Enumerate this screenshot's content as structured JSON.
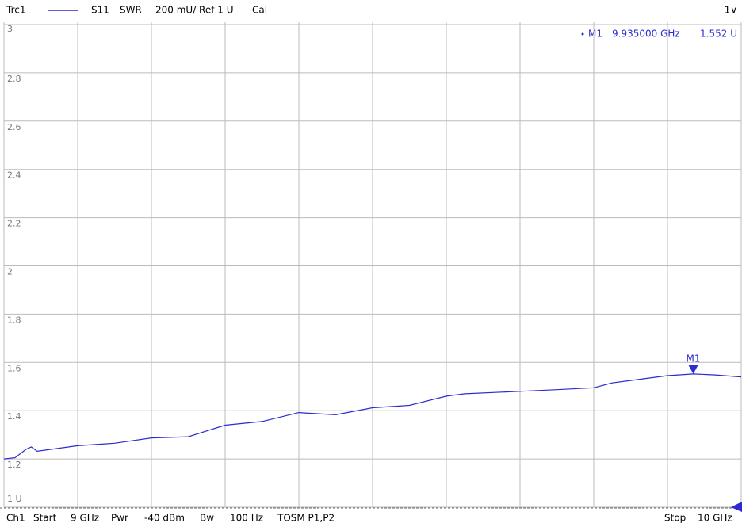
{
  "chart_data": {
    "type": "line",
    "header": {
      "trace": "Trc1",
      "param": "S11",
      "format": "SWR",
      "scale": "200 mU/ Ref 1 U",
      "cal": "Cal",
      "window": "1∨"
    },
    "footer": {
      "channel": "Ch1",
      "start_label": "Start",
      "start": "9 GHz",
      "power_label": "Pwr",
      "power": "-40 dBm",
      "bw_label": "Bw",
      "bw": "100 Hz",
      "calkit": "TOSM P1,P2",
      "stop_label": "Stop",
      "stop": "10 GHz"
    },
    "x": [
      9.0,
      9.015,
      9.03,
      9.037,
      9.045,
      9.1,
      9.15,
      9.2,
      9.25,
      9.3,
      9.35,
      9.4,
      9.45,
      9.5,
      9.55,
      9.6,
      9.625,
      9.7,
      9.75,
      9.8,
      9.825,
      9.85,
      9.9,
      9.935,
      9.965,
      10.0
    ],
    "series": [
      {
        "name": "Trc1",
        "color": "#2b2bd0",
        "values": [
          1.2,
          1.205,
          1.24,
          1.25,
          1.232,
          1.255,
          1.265,
          1.287,
          1.292,
          1.34,
          1.355,
          1.392,
          1.383,
          1.412,
          1.422,
          1.46,
          1.47,
          1.48,
          1.487,
          1.495,
          1.515,
          1.525,
          1.545,
          1.552,
          1.548,
          1.54
        ]
      }
    ],
    "marker": {
      "name": "M1",
      "x": 9.935,
      "x_label": "9.935000 GHz",
      "y": 1.552,
      "y_label": "1.552 U"
    },
    "xlim": [
      9.0,
      10.0
    ],
    "xticks": [
      9.0,
      9.1,
      9.2,
      9.3,
      9.4,
      9.5,
      9.6,
      9.7,
      9.8,
      9.9,
      10.0
    ],
    "ylim": [
      1,
      3
    ],
    "yticks": [
      {
        "value": 1,
        "label": "1 U"
      },
      1.2,
      1.4,
      1.6,
      1.8,
      2,
      2.2,
      2.4,
      2.6,
      2.8,
      3
    ],
    "grid": true
  }
}
